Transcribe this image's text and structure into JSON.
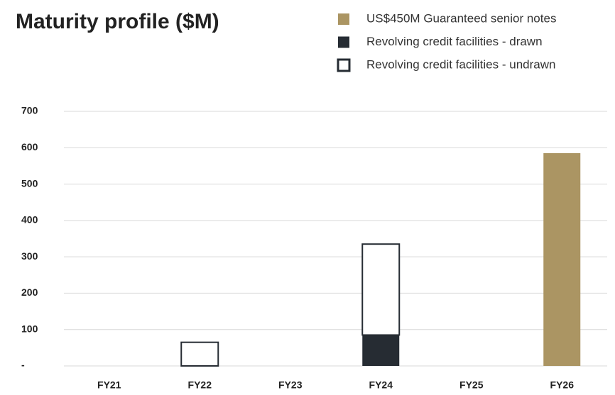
{
  "chart_data": {
    "type": "bar",
    "stacked": true,
    "title": "Maturity profile ($M)",
    "categories": [
      "FY21",
      "FY22",
      "FY23",
      "FY24",
      "FY25",
      "FY26"
    ],
    "series": [
      {
        "name": "US$450M Guaranteed senior notes",
        "color": "#ab9563",
        "values": [
          null,
          null,
          null,
          null,
          null,
          585
        ]
      },
      {
        "name": "Revolving credit facilities - drawn",
        "color": "#262c33",
        "values": [
          null,
          null,
          null,
          85,
          null,
          null
        ]
      },
      {
        "name": "Revolving credit facilities - undrawn",
        "color": "#ffffff",
        "values": [
          null,
          65,
          null,
          250,
          null,
          null
        ]
      }
    ],
    "ylim": [
      0,
      700
    ],
    "yticks": [
      {
        "value": 0,
        "label": "-"
      },
      100,
      200,
      300,
      400,
      500,
      600,
      700
    ],
    "grid": true,
    "legend": "top-right"
  }
}
